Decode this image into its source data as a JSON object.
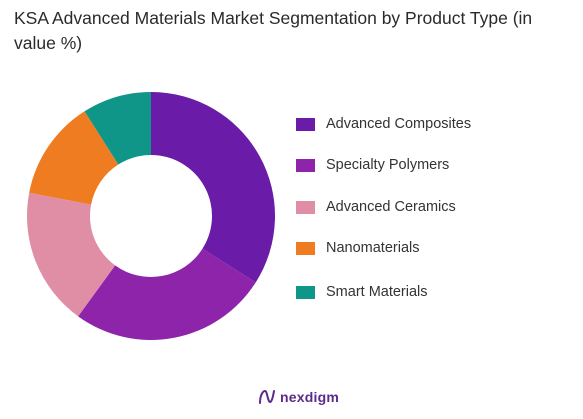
{
  "title": "KSA Advanced Materials Market  Segmentation by Product Type (in value %)",
  "chart_data": {
    "type": "pie",
    "donut": true,
    "title": "KSA Advanced Materials Market  Segmentation by Product Type (in value %)",
    "categories": [
      "Advanced Composites",
      "Specialty Polymers",
      "Advanced Ceramics",
      "Nanomaterials",
      "Smart Materials"
    ],
    "values": [
      34,
      26,
      18,
      13,
      9
    ],
    "colors": [
      "#6a1ba8",
      "#8e24aa",
      "#df8ea5",
      "#f07c22",
      "#0f9688"
    ],
    "legend_position": "right"
  },
  "brand": {
    "name": "nexdigm",
    "icon": "nexdigm-logo-icon"
  }
}
